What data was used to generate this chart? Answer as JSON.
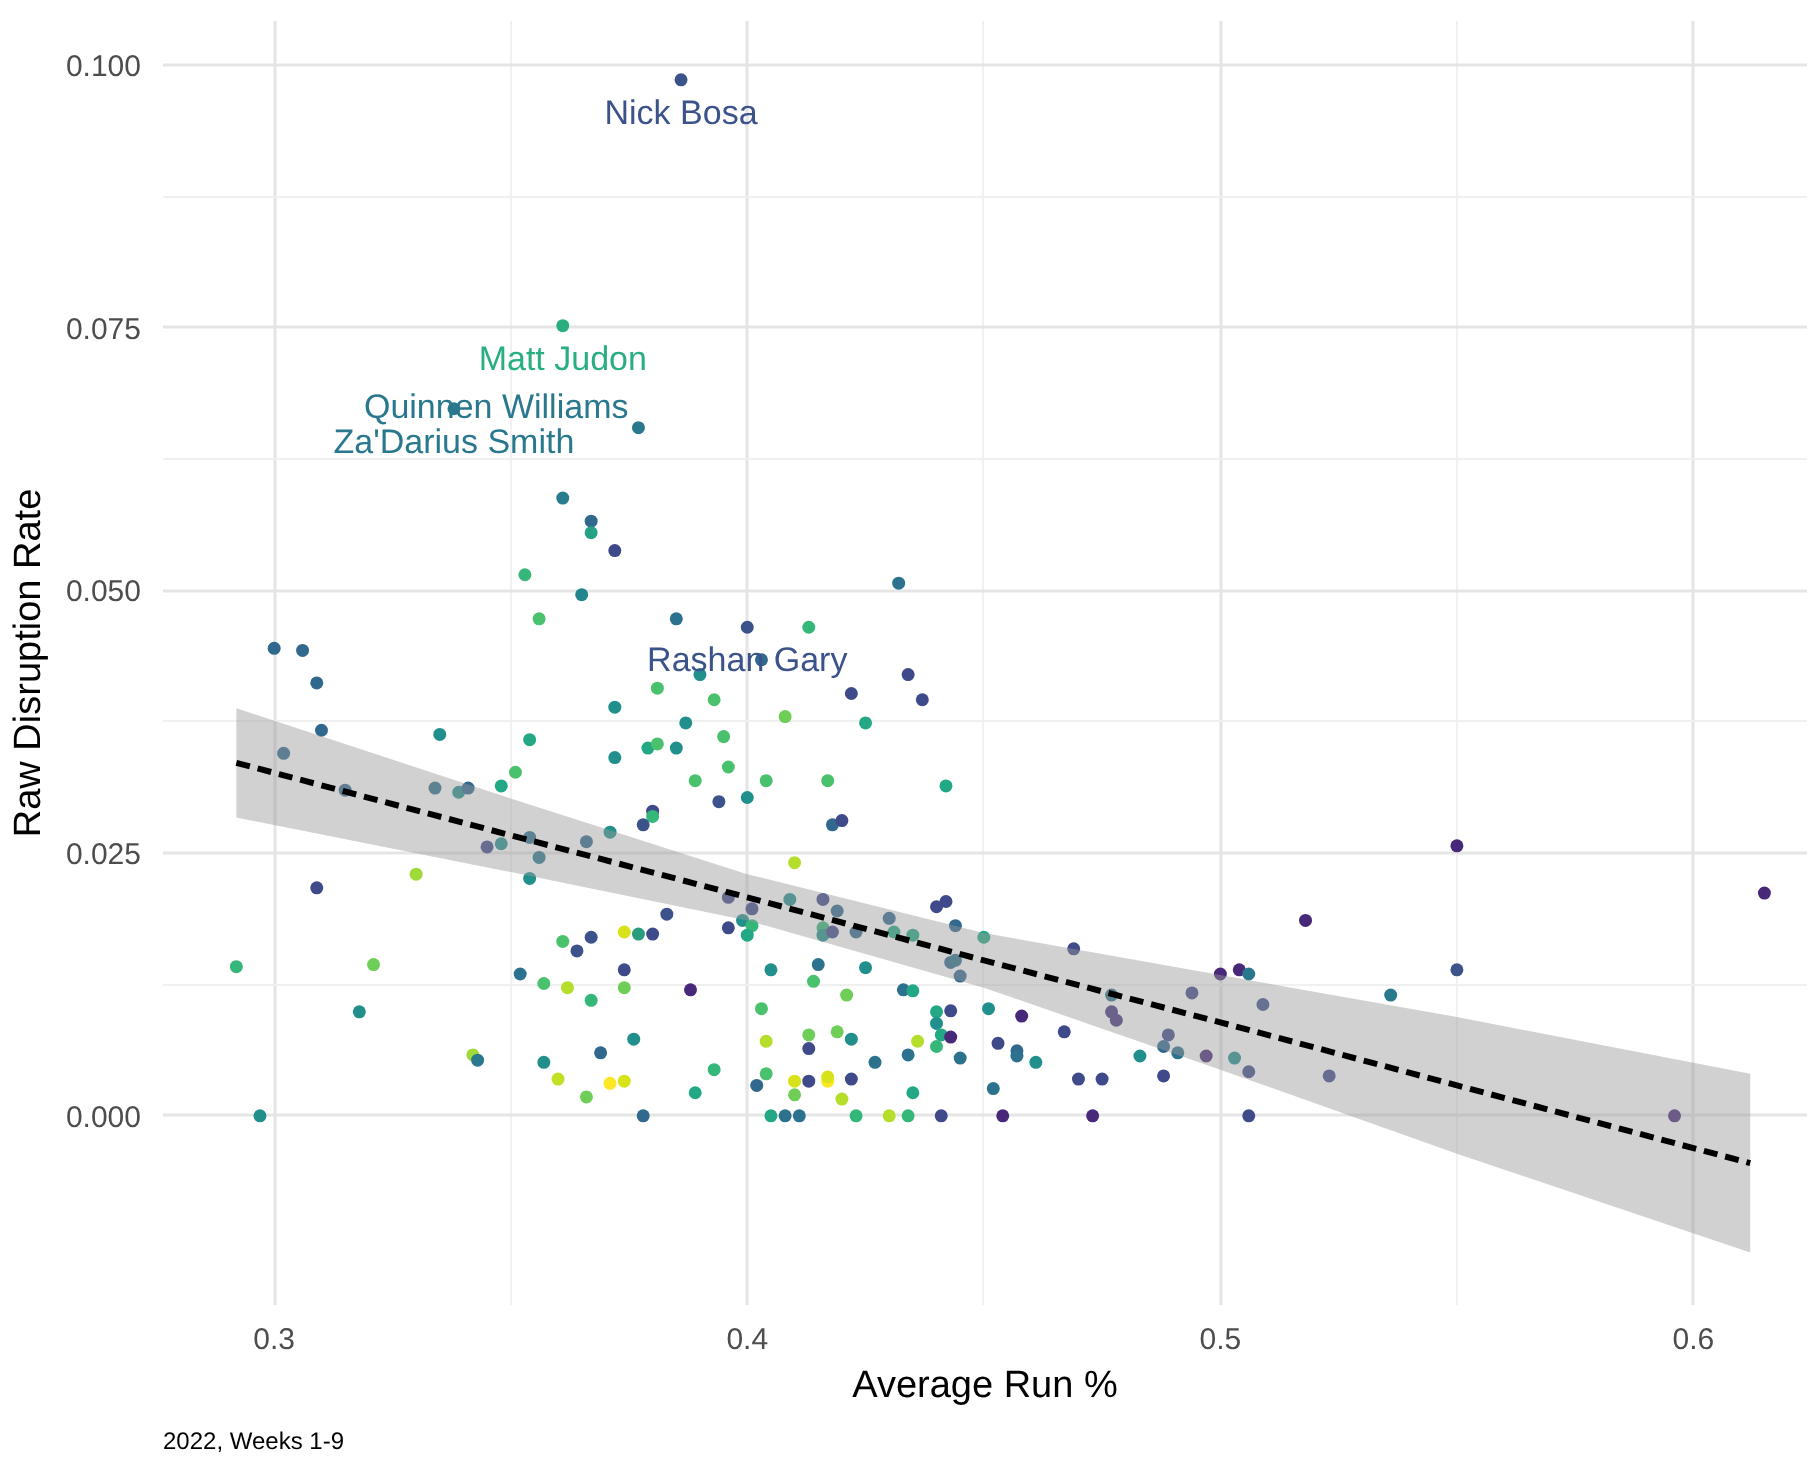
{
  "chart_data": {
    "type": "scatter",
    "xlabel": "Average Run %",
    "ylabel": "Raw Disruption Rate",
    "xlim": [
      0.2765,
      0.624
    ],
    "ylim": [
      -0.018,
      0.1042
    ],
    "xticks": [
      0.3,
      0.4,
      0.5,
      0.6
    ],
    "yticks": [
      {
        "value": 0,
        "label": "0.000"
      },
      {
        "value": 0.025,
        "label": "0.025"
      },
      {
        "value": 0.05,
        "label": "0.050"
      },
      {
        "value": 0.075,
        "label": "0.075"
      },
      {
        "value": 0.1,
        "label": "0.100"
      }
    ],
    "grid": true,
    "series": [
      {
        "marker": "circle",
        "x": [
          0.386,
          0.361,
          0.338,
          0.377,
          0.361,
          0.367,
          0.367,
          0.372,
          0.353,
          0.365,
          0.356,
          0.385,
          0.4,
          0.413,
          0.432,
          0.3,
          0.306,
          0.309,
          0.39,
          0.381,
          0.393,
          0.372,
          0.31,
          0.335,
          0.387,
          0.395,
          0.354,
          0.379,
          0.381,
          0.385,
          0.302,
          0.351,
          0.372,
          0.396,
          0.389,
          0.394,
          0.315,
          0.334,
          0.339,
          0.341,
          0.348,
          0.38,
          0.38,
          0.378,
          0.371,
          0.345,
          0.348,
          0.354,
          0.356,
          0.366,
          0.354,
          0.33,
          0.309,
          0.396,
          0.383,
          0.396,
          0.399,
          0.374,
          0.377,
          0.38,
          0.361,
          0.364,
          0.367,
          0.292,
          0.321,
          0.374,
          0.352,
          0.357,
          0.362,
          0.374,
          0.388,
          0.367,
          0.318,
          0.376,
          0.369,
          0.342,
          0.343,
          0.357,
          0.393,
          0.36,
          0.371,
          0.374,
          0.389,
          0.366,
          0.297,
          0.378,
          0.403,
          0.434,
          0.437,
          0.422,
          0.408,
          0.425,
          0.404,
          0.417,
          0.442,
          0.4,
          0.418,
          0.42,
          0.41,
          0.409,
          0.416,
          0.401,
          0.419,
          0.43,
          0.442,
          0.44,
          0.444,
          0.416,
          0.416,
          0.401,
          0.4,
          0.418,
          0.423,
          0.431,
          0.435,
          0.45,
          0.469,
          0.443,
          0.445,
          0.444,
          0.405,
          0.415,
          0.414,
          0.425,
          0.421,
          0.433,
          0.435,
          0.403,
          0.44,
          0.44,
          0.443,
          0.451,
          0.458,
          0.467,
          0.404,
          0.413,
          0.413,
          0.419,
          0.422,
          0.436,
          0.441,
          0.44,
          0.443,
          0.453,
          0.457,
          0.457,
          0.461,
          0.434,
          0.445,
          0.427,
          0.404,
          0.402,
          0.41,
          0.41,
          0.413,
          0.417,
          0.417,
          0.422,
          0.42,
          0.435,
          0.452,
          0.47,
          0.475,
          0.405,
          0.408,
          0.411,
          0.423,
          0.43,
          0.434,
          0.441,
          0.454,
          0.473,
          0.55,
          0.615,
          0.518,
          0.5,
          0.504,
          0.506,
          0.55,
          0.536,
          0.477,
          0.494,
          0.477,
          0.478,
          0.509,
          0.489,
          0.488,
          0.491,
          0.483,
          0.497,
          0.503,
          0.506,
          0.523,
          0.488,
          0.506,
          0.596
        ],
        "values": [
          0.0986,
          0.0752,
          0.0673,
          0.0655,
          0.0588,
          0.0566,
          0.0555,
          0.0538,
          0.0515,
          0.0496,
          0.0473,
          0.0473,
          0.0465,
          0.0465,
          0.0507,
          0.0445,
          0.0443,
          0.0412,
          0.042,
          0.0407,
          0.0396,
          0.0389,
          0.0367,
          0.0363,
          0.0374,
          0.0361,
          0.0358,
          0.035,
          0.0354,
          0.035,
          0.0345,
          0.0327,
          0.0341,
          0.0332,
          0.0319,
          0.0299,
          0.031,
          0.0312,
          0.0308,
          0.0312,
          0.0314,
          0.029,
          0.0285,
          0.0277,
          0.027,
          0.0256,
          0.0259,
          0.0265,
          0.0246,
          0.0261,
          0.0226,
          0.023,
          0.0217,
          0.0208,
          0.0192,
          0.0179,
          0.0186,
          0.0175,
          0.0173,
          0.0173,
          0.0166,
          0.0157,
          0.017,
          0.0142,
          0.0144,
          0.0139,
          0.0135,
          0.0126,
          0.0122,
          0.0122,
          0.012,
          0.011,
          0.0099,
          0.0073,
          0.006,
          0.0058,
          0.0053,
          0.0051,
          0.0044,
          0.0035,
          0.0031,
          0.0033,
          0.0022,
          0.0018,
          0.0,
          0.0,
          0.0434,
          0.042,
          0.0396,
          0.0402,
          0.038,
          0.0374,
          0.0319,
          0.0319,
          0.0314,
          0.0303,
          0.0277,
          0.0281,
          0.0241,
          0.0206,
          0.0206,
          0.0197,
          0.0195,
          0.0188,
          0.0204,
          0.0199,
          0.0181,
          0.0179,
          0.0172,
          0.0181,
          0.0172,
          0.0175,
          0.0175,
          0.0175,
          0.0172,
          0.017,
          0.0159,
          0.0146,
          0.0133,
          0.0148,
          0.0139,
          0.0144,
          0.0128,
          0.0141,
          0.0115,
          0.012,
          0.0119,
          0.0102,
          0.0099,
          0.0088,
          0.01,
          0.0102,
          0.0095,
          0.008,
          0.0071,
          0.0077,
          0.0064,
          0.008,
          0.0073,
          0.0071,
          0.0077,
          0.0066,
          0.0075,
          0.0069,
          0.0062,
          0.0057,
          0.0051,
          0.0058,
          0.0055,
          0.0051,
          0.004,
          0.0029,
          0.0033,
          0.002,
          0.0033,
          0.0033,
          0.0037,
          0.0035,
          0.0016,
          0.0022,
          0.0026,
          0.0035,
          0.0035,
          0.0,
          0.0,
          0.0,
          0.0,
          0.0,
          0.0,
          0.0,
          0.0,
          0.0,
          0.0257,
          0.0212,
          0.0186,
          0.0135,
          0.0139,
          0.0135,
          0.0139,
          0.0115,
          0.0115,
          0.0117,
          0.0099,
          0.0091,
          0.0106,
          0.0077,
          0.0066,
          0.006,
          0.0057,
          0.0057,
          0.0055,
          0.0042,
          0.0038,
          0.0038,
          0.0,
          0.0
        ],
        "colors": [
          "#3b528b",
          "#29af7f",
          "#2a788e",
          "#2a788e",
          "#287d8e",
          "#31688e",
          "#26a185",
          "#3e4a89",
          "#35b779",
          "#25858e",
          "#4ac16d",
          "#2c728e",
          "#3b528b",
          "#35b779",
          "#2c728e",
          "#31688e",
          "#31688e",
          "#31688e",
          "#21908d",
          "#4ac16d",
          "#4ac16d",
          "#21908d",
          "#31688e",
          "#21908d",
          "#21908d",
          "#4ac16d",
          "#22a884",
          "#22a884",
          "#4ac16d",
          "#21908d",
          "#31688e",
          "#4ac16d",
          "#21908d",
          "#4ac16d",
          "#4ac16d",
          "#3b528b",
          "#31688e",
          "#2c728e",
          "#21908d",
          "#31688e",
          "#22a884",
          "#3e4a89",
          "#35b779",
          "#3b528b",
          "#21908d",
          "#3e4a89",
          "#21908d",
          "#2c728e",
          "#2a788e",
          "#31688e",
          "#21908d",
          "#a0da39",
          "#3e4a89",
          "#3e4a89",
          "#3b528b",
          "#3e4a89",
          "#21908d",
          "#d8e219",
          "#2a9d7f",
          "#3e4a89",
          "#4ac16d",
          "#3b528b",
          "#3b528b",
          "#35b779",
          "#6ece58",
          "#3e4a89",
          "#2c728e",
          "#4ac16d",
          "#b5de2b",
          "#6ece58",
          "#482878",
          "#35b779",
          "#21908d",
          "#21908d",
          "#31688e",
          "#a0da39",
          "#2a788e",
          "#21908d",
          "#35b779",
          "#c2df23",
          "#fde725",
          "#d8e219",
          "#22a884",
          "#6ece58",
          "#21908d",
          "#31688e",
          "#31688e",
          "#3e4a89",
          "#3e4a89",
          "#3e4a89",
          "#6ece58",
          "#22a884",
          "#4ac16d",
          "#4ac16d",
          "#22a884",
          "#21908d",
          "#31688e",
          "#3e4a89",
          "#b5de2b",
          "#21908d",
          "#3e4a89",
          "#3e4a89",
          "#31688e",
          "#31688e",
          "#3e4a89",
          "#3e4a89",
          "#31688e",
          "#35b779",
          "#21908d",
          "#35b779",
          "#22a884",
          "#3e4a89",
          "#31688e",
          "#22a884",
          "#22a884",
          "#22a884",
          "#3e4a89",
          "#31688e",
          "#31688e",
          "#2c728e",
          "#21908d",
          "#2c728e",
          "#4ac16d",
          "#21908d",
          "#6ece58",
          "#2c728e",
          "#22a884",
          "#4ac16d",
          "#22a884",
          "#21908d",
          "#3e4a89",
          "#21908d",
          "#482878",
          "#3e4a89",
          "#b5de2b",
          "#6ece58",
          "#3e4a89",
          "#6ece58",
          "#21908d",
          "#b5de2b",
          "#22a884",
          "#35b779",
          "#482878",
          "#3e4a89",
          "#31688e",
          "#2c728e",
          "#21908d",
          "#2c728e",
          "#2c728e",
          "#2c728e",
          "#4ac16d",
          "#31688e",
          "#d8e219",
          "#6ece58",
          "#3e4a89",
          "#fde725",
          "#d8e219",
          "#3e4a89",
          "#b5de2b",
          "#22a884",
          "#2c728e",
          "#3e4a89",
          "#3e4a89",
          "#22a884",
          "#2c728e",
          "#2c728e",
          "#35b779",
          "#b5de2b",
          "#35b779",
          "#3e4a89",
          "#482878",
          "#482878",
          "#482878",
          "#482878",
          "#482878",
          "#482878",
          "#482878",
          "#2a788e",
          "#3b528b",
          "#2a788e",
          "#2c728e",
          "#3e4a89",
          "#46337e",
          "#46337e",
          "#3b528b",
          "#3e4a89",
          "#31688e",
          "#2c728e",
          "#21908d",
          "#482878",
          "#21908d",
          "#3e4a89",
          "#3e4a89",
          "#3e4a89",
          "#3e4a89",
          "#482878"
        ]
      },
      {
        "type": "line",
        "color": "#000000",
        "line_style": "dashed",
        "x": [
          0.292,
          0.35,
          0.4,
          0.45,
          0.5,
          0.55,
          0.612
        ],
        "values": [
          0.0336,
          0.0267,
          0.0208,
          0.0148,
          0.0089,
          0.0029,
          -0.0045
        ],
        "lower": [
          0.0284,
          0.0232,
          0.0186,
          0.0122,
          0.0044,
          -0.0036,
          -0.013
        ],
        "upper": [
          0.0388,
          0.0302,
          0.023,
          0.0174,
          0.0134,
          0.0094,
          0.004
        ]
      }
    ],
    "annotations": [
      {
        "text": "Nick Bosa",
        "x": 0.386,
        "y": 0.0986
      },
      {
        "text": "Matt Judon",
        "x": 0.361,
        "y": 0.0752
      },
      {
        "text": "Za'Darius Smith",
        "x": 0.338,
        "y": 0.0673
      },
      {
        "text": "Quinnen Williams",
        "x": 0.377,
        "y": 0.0655
      },
      {
        "text": "Rashan Gary",
        "x": 0.4,
        "y": 0.0465
      },
      "2022, Weeks 1-9"
    ]
  }
}
